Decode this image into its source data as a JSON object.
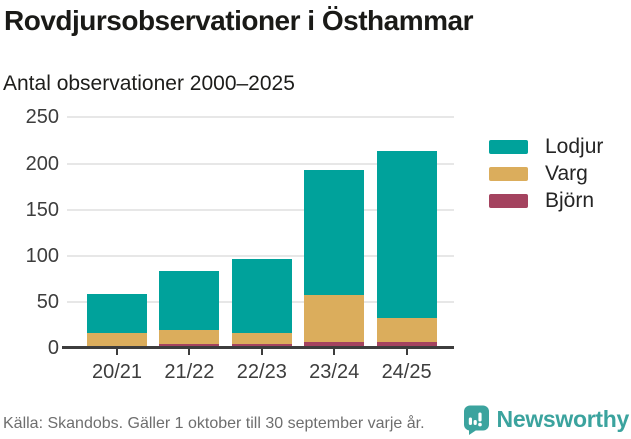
{
  "title": "Rovdjursobservationer i Östhammar",
  "subtitle": "Antal observationer 2000–2025",
  "footer": {
    "source": "Källa: Skandobs. Gäller 1 oktober till 30 september varje år.",
    "brand": "Newsworthy"
  },
  "colors": {
    "lodjur": "#00A29B",
    "varg": "#DBAD5C",
    "bjorn": "#A4435F",
    "grid": "#e7e7e7",
    "axis": "#3d3d3d",
    "brand_teal": "#3BA39E"
  },
  "chart_data": {
    "type": "bar",
    "stacked": true,
    "title": "Rovdjursobservationer i Östhammar",
    "subtitle": "Antal observationer 2000–2025",
    "categories": [
      "20/21",
      "21/22",
      "22/23",
      "23/24",
      "24/25"
    ],
    "series": [
      {
        "name": "Lodjur",
        "color_key": "lodjur",
        "values": [
          43,
          63,
          80,
          136,
          181
        ]
      },
      {
        "name": "Varg",
        "color_key": "varg",
        "values": [
          14,
          16,
          12,
          51,
          26
        ]
      },
      {
        "name": "Björn",
        "color_key": "bjorn",
        "values": [
          2,
          4,
          4,
          6,
          7
        ]
      }
    ],
    "totals": [
      59,
      83,
      96,
      193,
      214
    ],
    "yticks": [
      0,
      50,
      100,
      150,
      200,
      250
    ],
    "ylim": [
      0,
      250
    ],
    "xlabel": "",
    "ylabel": "Antal observationer",
    "grid": true,
    "legend_position": "right",
    "legend": [
      "Lodjur",
      "Varg",
      "Björn"
    ]
  }
}
